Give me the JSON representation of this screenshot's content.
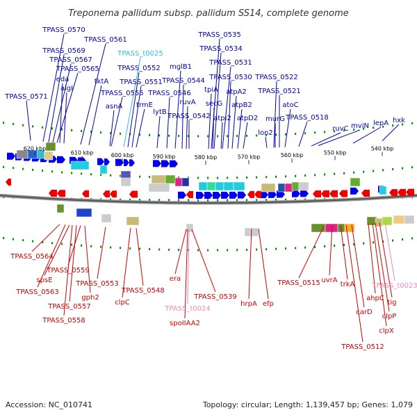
{
  "title": "Treponema pallidum subsp. pallidum SS14, complete genome",
  "footer": {
    "accession": "Accession: NC_010741",
    "summary": "Topology: circular; Length: 1,139,457 bp; Genes: 1,079"
  },
  "colors": {
    "top_label": "#0000aa",
    "bottom_label": "#cc0000",
    "top_rna": "#33bbdd",
    "bottom_rna": "#ee88bb",
    "fwd_arrow": "#0000ee",
    "rev_arrow": "#ee0000",
    "tick": "#118811"
  },
  "kbp_ticks": [
    {
      "label": "620 kbp"
    },
    {
      "label": "610 kbp"
    },
    {
      "label": "600 kbp"
    },
    {
      "label": "590 kbp"
    },
    {
      "label": "580 kbp"
    },
    {
      "label": "570 kbp"
    },
    {
      "label": "560 kbp"
    },
    {
      "label": "550 kbp"
    },
    {
      "label": "540 kbp"
    }
  ],
  "top_genes": [
    {
      "name": "TPASS_0570",
      "type": "gene"
    },
    {
      "name": "TPASS_0561",
      "type": "gene"
    },
    {
      "name": "TPASS_0569",
      "type": "gene"
    },
    {
      "name": "TPASS_0567",
      "type": "gene"
    },
    {
      "name": "TPASS_0565",
      "type": "gene"
    },
    {
      "name": "eda",
      "type": "gene"
    },
    {
      "name": "algI",
      "type": "gene"
    },
    {
      "name": "TPASS_0571",
      "type": "gene"
    },
    {
      "name": "tktA",
      "type": "gene"
    },
    {
      "name": "TPASS_t0025",
      "type": "rna"
    },
    {
      "name": "TPASS_0552",
      "type": "gene"
    },
    {
      "name": "TPASS_0551",
      "type": "gene"
    },
    {
      "name": "TPASS_0555",
      "type": "gene"
    },
    {
      "name": "asnA",
      "type": "gene"
    },
    {
      "name": "trmE",
      "type": "gene"
    },
    {
      "name": "mglB1",
      "type": "gene"
    },
    {
      "name": "TPASS_0544",
      "type": "gene"
    },
    {
      "name": "TPASS_0546",
      "type": "gene"
    },
    {
      "name": "lytB",
      "type": "gene"
    },
    {
      "name": "ruvA",
      "type": "gene"
    },
    {
      "name": "TPASS_0542",
      "type": "gene"
    },
    {
      "name": "TPASS_0535",
      "type": "gene"
    },
    {
      "name": "TPASS_0534",
      "type": "gene"
    },
    {
      "name": "TPASS_0531",
      "type": "gene"
    },
    {
      "name": "TPASS_0530",
      "type": "gene"
    },
    {
      "name": "tpiA",
      "type": "gene"
    },
    {
      "name": "atpA2",
      "type": "gene"
    },
    {
      "name": "secG",
      "type": "gene"
    },
    {
      "name": "atpB2",
      "type": "gene"
    },
    {
      "name": "atpI2",
      "type": "gene"
    },
    {
      "name": "atpD2",
      "type": "gene"
    },
    {
      "name": "TPASS_0522",
      "type": "gene"
    },
    {
      "name": "TPASS_0521",
      "type": "gene"
    },
    {
      "name": "atoC",
      "type": "gene"
    },
    {
      "name": "murG",
      "type": "gene"
    },
    {
      "name": "TPASS_0518",
      "type": "gene"
    },
    {
      "name": "lon2",
      "type": "gene"
    },
    {
      "name": "ruvC",
      "type": "gene"
    },
    {
      "name": "mviN",
      "type": "gene"
    },
    {
      "name": "lepA",
      "type": "gene"
    },
    {
      "name": "hxk",
      "type": "gene"
    }
  ],
  "bottom_genes": [
    {
      "name": "TPASS_0564",
      "type": "gene"
    },
    {
      "name": "TPASS_0559",
      "type": "gene"
    },
    {
      "name": "spsE",
      "type": "gene"
    },
    {
      "name": "TPASS_0563",
      "type": "gene"
    },
    {
      "name": "TPASS_0553",
      "type": "gene"
    },
    {
      "name": "gph2",
      "type": "gene"
    },
    {
      "name": "TPASS_0557",
      "type": "gene"
    },
    {
      "name": "TPASS_0558",
      "type": "gene"
    },
    {
      "name": "clpC",
      "type": "gene"
    },
    {
      "name": "TPASS_0548",
      "type": "gene"
    },
    {
      "name": "era",
      "type": "gene"
    },
    {
      "name": "TPASS_t0024",
      "type": "rna"
    },
    {
      "name": "spoIIAA2",
      "type": "gene"
    },
    {
      "name": "TPASS_0539",
      "type": "gene"
    },
    {
      "name": "hrpA",
      "type": "gene"
    },
    {
      "name": "efp",
      "type": "gene"
    },
    {
      "name": "TPASS_0515",
      "type": "gene"
    },
    {
      "name": "uvrA",
      "type": "gene"
    },
    {
      "name": "trkA",
      "type": "gene"
    },
    {
      "name": "carD",
      "type": "gene"
    },
    {
      "name": "TPASS_0512",
      "type": "gene"
    },
    {
      "name": "ahpC",
      "type": "gene"
    },
    {
      "name": "tig",
      "type": "gene"
    },
    {
      "name": "clpP",
      "type": "gene"
    },
    {
      "name": "clpX",
      "type": "gene"
    },
    {
      "name": "TPASS_t0023",
      "type": "rna"
    }
  ]
}
